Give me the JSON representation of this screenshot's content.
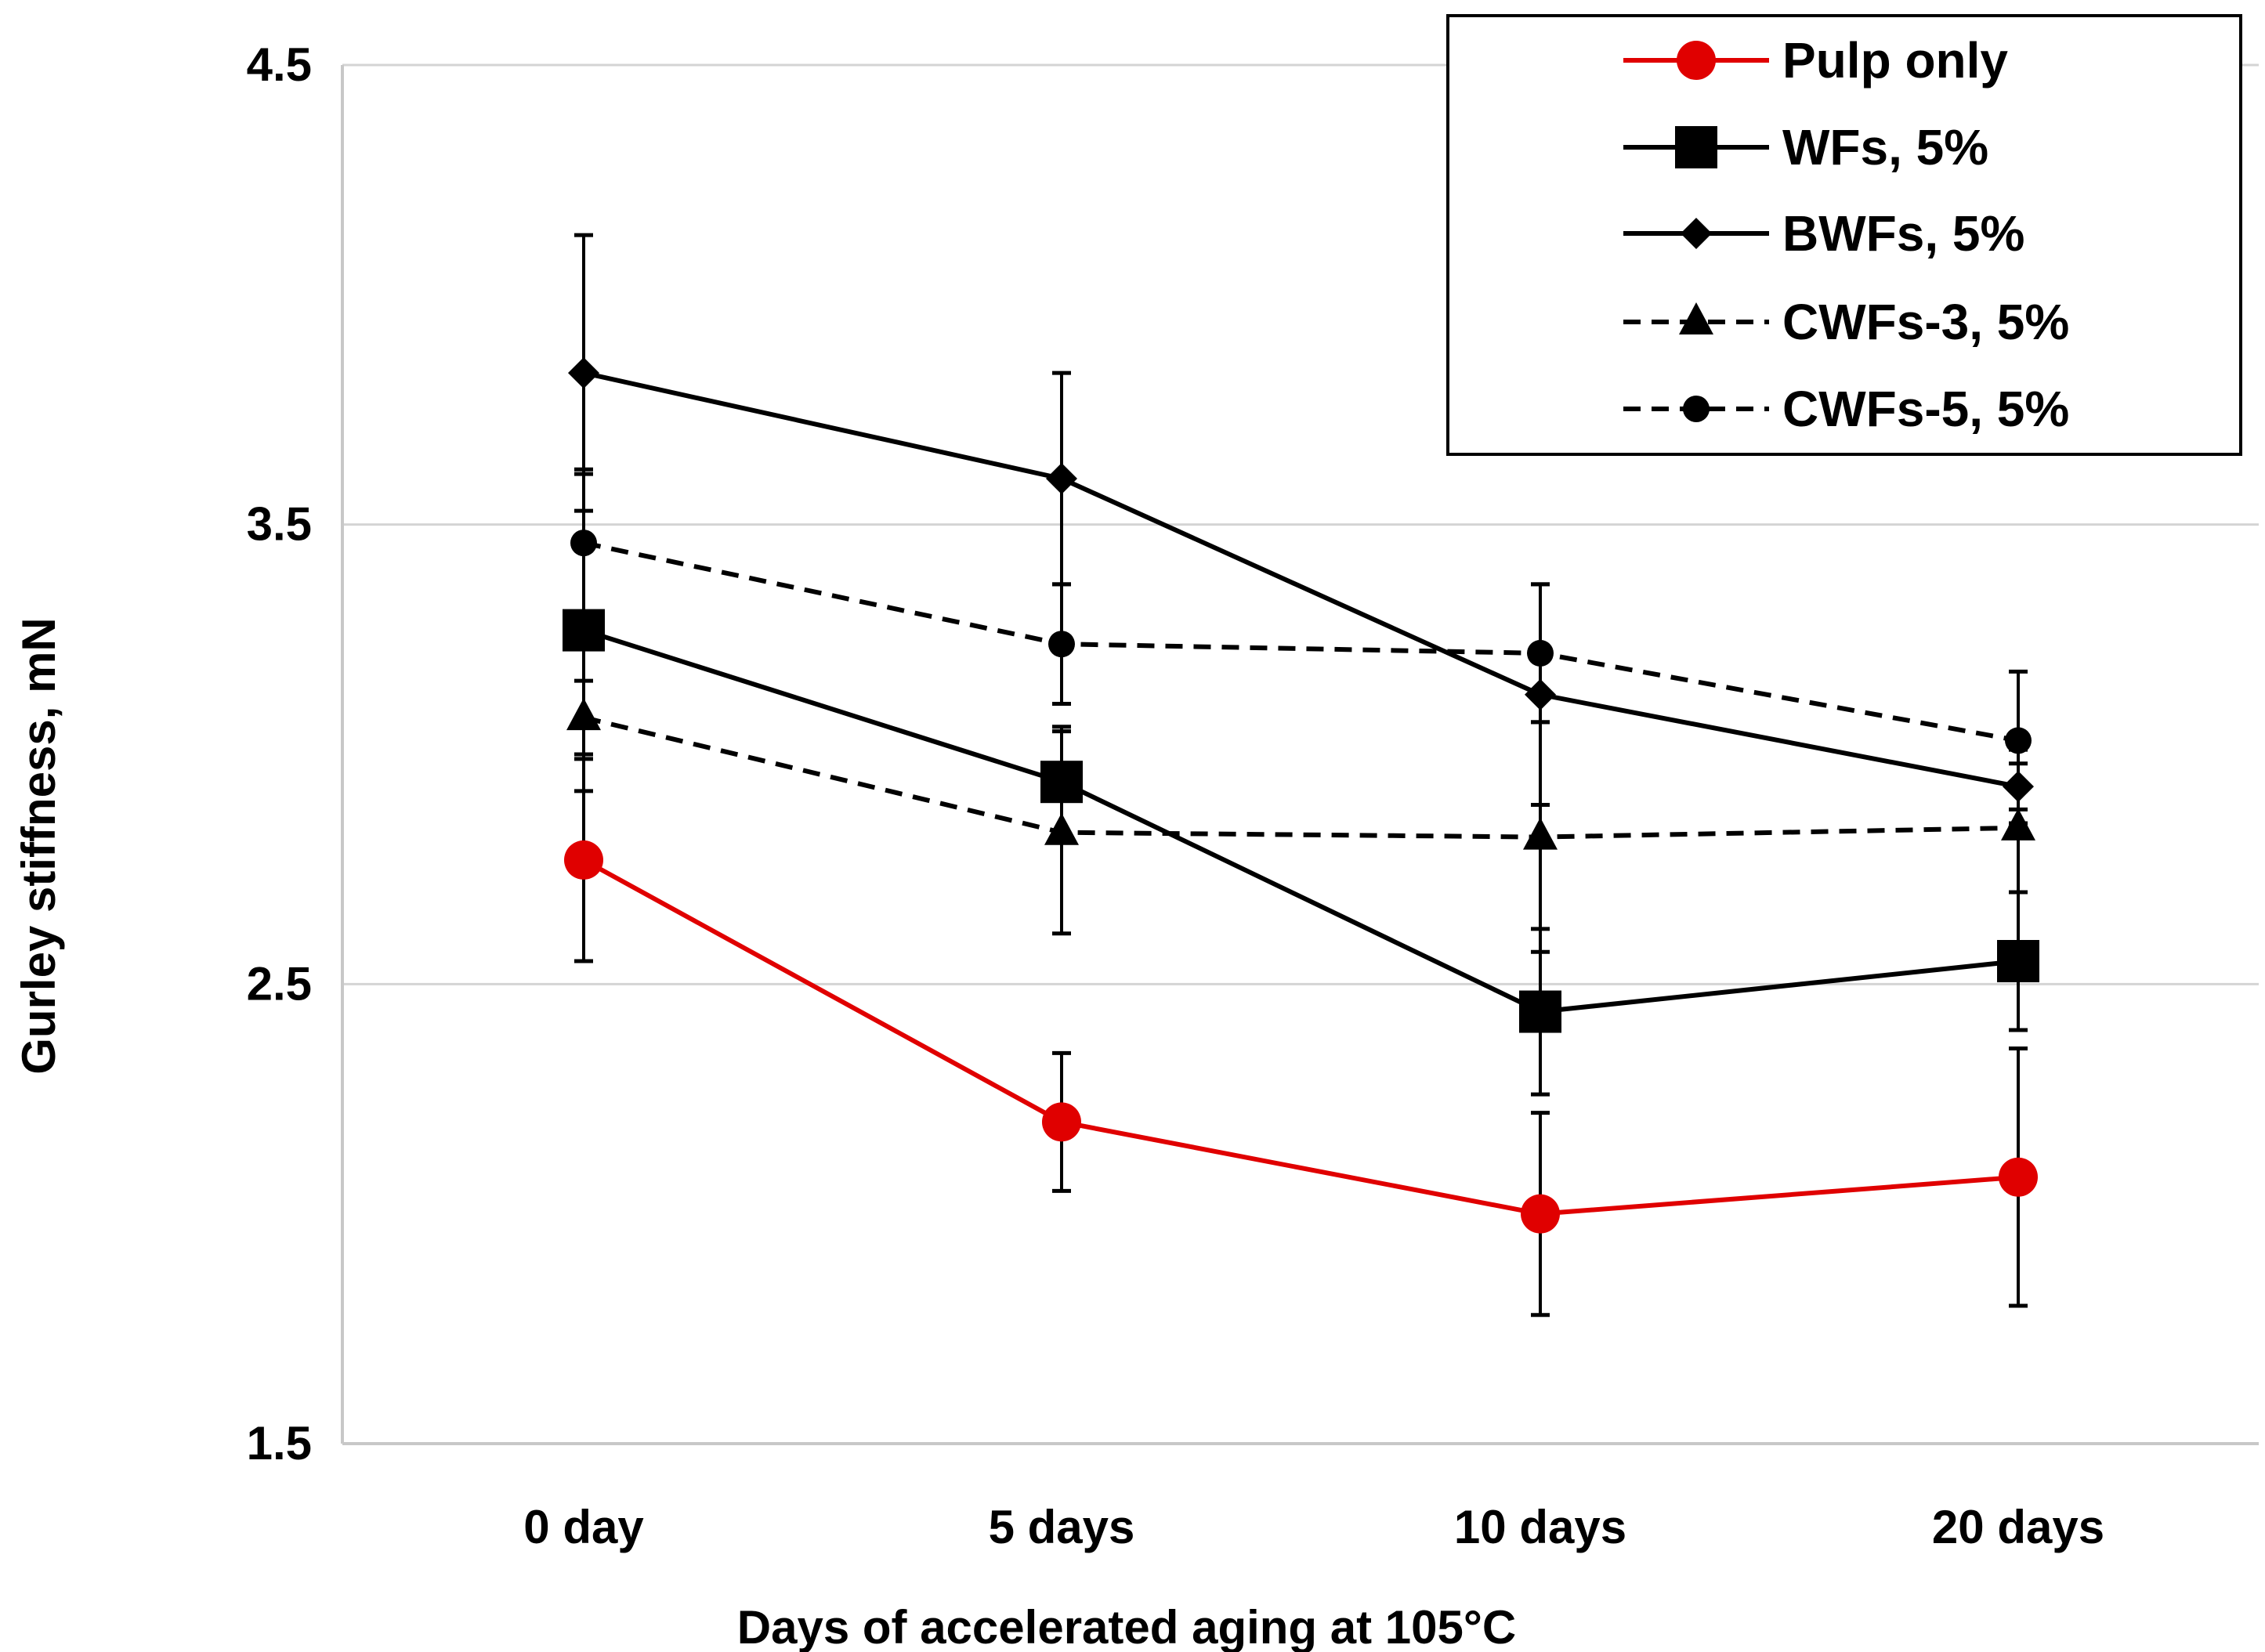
{
  "chart_data": {
    "type": "line",
    "title": "",
    "xlabel": "Days of accelerated aging at 105°C",
    "ylabel": "Gurley stiffness, mN",
    "categories": [
      "0 day",
      "5 days",
      "10 days",
      "20 days"
    ],
    "ylim": [
      1.5,
      4.5
    ],
    "yticks": [
      "1.5",
      "2.5",
      "3.5",
      "4.5"
    ],
    "ytick_values": [
      1.5,
      2.5,
      3.5,
      4.5
    ],
    "grid": "horizontal",
    "legend_position": "top-right",
    "series": [
      {
        "name": "Pulp only",
        "values": [
          2.77,
          2.2,
          2.0,
          2.08
        ],
        "errors": [
          0.22,
          0.15,
          0.22,
          0.28
        ],
        "color": "#e00000",
        "dashed": false,
        "marker": "circle-large"
      },
      {
        "name": "WFs, 5%",
        "values": [
          3.27,
          2.94,
          2.44,
          2.55
        ],
        "errors": [
          0.35,
          0.12,
          0.18,
          0.15
        ],
        "color": "#000000",
        "dashed": false,
        "marker": "square"
      },
      {
        "name": "BWFs, 5%",
        "values": [
          3.83,
          3.6,
          3.13,
          2.93
        ],
        "errors": [
          0.3,
          0.23,
          0.24,
          0.08
        ],
        "color": "#000000",
        "dashed": false,
        "marker": "diamond"
      },
      {
        "name": "CWFs-3, 5%",
        "values": [
          3.08,
          2.83,
          2.82,
          2.84
        ],
        "errors": [
          0.08,
          0.22,
          0.25,
          0.14
        ],
        "color": "#000000",
        "dashed": true,
        "marker": "triangle"
      },
      {
        "name": "CWFs-5, 5%",
        "values": [
          3.46,
          3.24,
          3.22,
          3.03
        ],
        "errors": [
          0.15,
          0.13,
          0.15,
          0.15
        ],
        "color": "#000000",
        "dashed": true,
        "marker": "circle-small"
      }
    ]
  }
}
